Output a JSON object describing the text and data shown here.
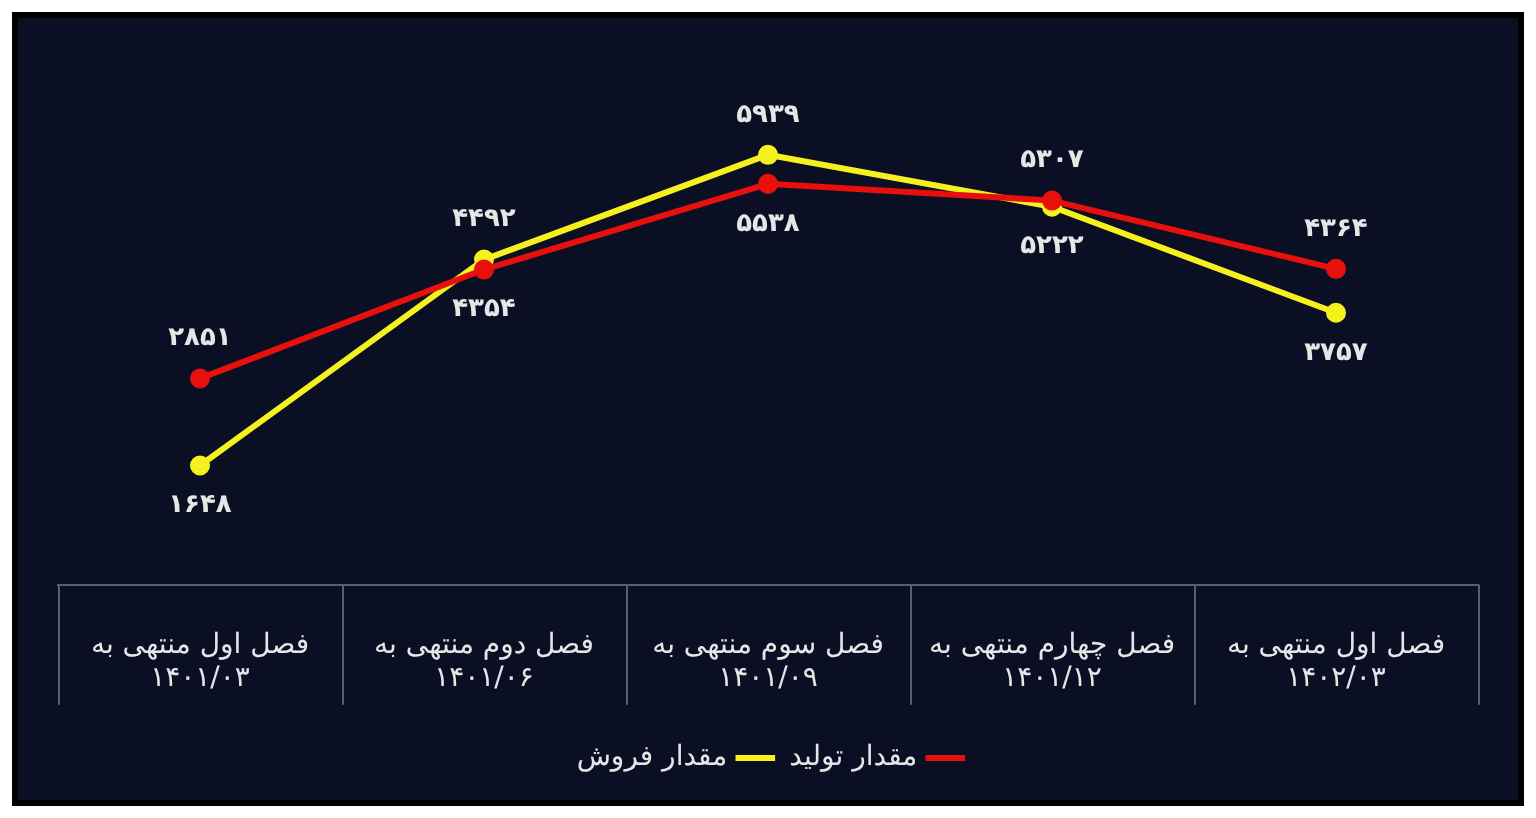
{
  "chart_data": {
    "type": "line",
    "categories": [
      "فصل اول منتهی به\n۱۴۰۱/۰۳",
      "فصل دوم منتهی به\n۱۴۰۱/۰۶",
      "فصل سوم منتهی به\n۱۴۰۱/۰۹",
      "فصل چهارم منتهی به\n۱۴۰۱/۱۲",
      "فصل اول منتهی به\n۱۴۰۲/۰۳"
    ],
    "series": [
      {
        "name": "مقدار تولید",
        "color": "#e8100c",
        "values": [
          2851,
          4354,
          5538,
          5307,
          4364
        ],
        "value_labels": [
          "۲۸۵۱",
          "۴۳۵۴",
          "۵۵۳۸",
          "۵۳۰۷",
          "۴۳۶۴"
        ]
      },
      {
        "name": "مقدار فروش",
        "color": "#f5f01e",
        "values": [
          1648,
          4492,
          5939,
          5222,
          3757
        ],
        "value_labels": [
          "۱۶۴۸",
          "۴۴۹۲",
          "۵۹۳۹",
          "۵۲۲۲",
          "۳۷۵۷"
        ]
      }
    ],
    "legend": "bottom",
    "marker": "circle",
    "line_style": "solid"
  }
}
